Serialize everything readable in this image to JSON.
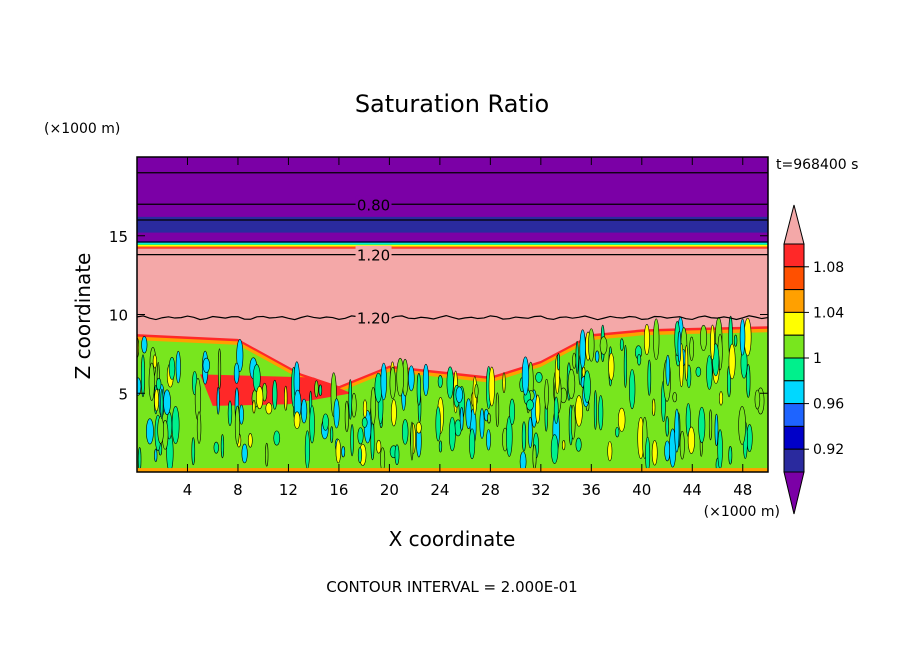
{
  "chart_data": {
    "type": "heatmap",
    "title": "Saturation Ratio",
    "time_label": "t=968400 s",
    "xlabel": "X coordinate",
    "ylabel": "Z coordinate",
    "x_unit": "(×1000 m)",
    "y_unit": "(×1000 m)",
    "xlim": [
      0,
      50
    ],
    "ylim": [
      0,
      20
    ],
    "x_ticks": [
      "4",
      "8",
      "12",
      "16",
      "20",
      "24",
      "28",
      "32",
      "36",
      "40",
      "44",
      "48"
    ],
    "y_ticks": [
      "5",
      "10",
      "15"
    ],
    "contour_interval": "CONTOUR INTERVAL = 2.000E-01",
    "contour_labels": [
      {
        "text": "0.80",
        "x": 17,
        "y": 17.0
      },
      {
        "text": "1.20",
        "x": 17,
        "y": 13.8
      },
      {
        "text": "1.20",
        "x": 17,
        "y": 9.8
      }
    ],
    "colorbar": {
      "labels": [
        "1.08",
        "1.04",
        "1",
        "0.96",
        "0.92"
      ],
      "levels": [
        0.92,
        0.94,
        0.96,
        0.98,
        1.0,
        1.02,
        1.04,
        1.06,
        1.08,
        1.1
      ],
      "colors": [
        "#7b00a6",
        "#2a2a9e",
        "#0000c8",
        "#1e64ff",
        "#00d8ff",
        "#00f08c",
        "#78e61e",
        "#ffff00",
        "#ffa000",
        "#ff5000",
        "#ff2828",
        "#f4a8a8"
      ]
    },
    "layers": [
      {
        "z_from": 17.0,
        "z_to": 20.0,
        "value": "< 0.92"
      },
      {
        "z_from": 14.6,
        "z_to": 17.0,
        "value": "< 0.92"
      },
      {
        "z_from": 14.3,
        "z_to": 14.6,
        "value": "0.92 – 1.10"
      },
      {
        "z_from": 8.0,
        "z_to": 14.3,
        "value": "> 1.10"
      },
      {
        "z_from": 0,
        "z_to": 8.0,
        "value": "0.98 – 1.02"
      }
    ],
    "boundary_layer_top": [
      {
        "x": 0,
        "z": 8.5
      },
      {
        "x": 8,
        "z": 8.2
      },
      {
        "x": 13,
        "z": 6.0
      },
      {
        "x": 16,
        "z": 5.2
      },
      {
        "x": 20,
        "z": 6.5
      },
      {
        "x": 28,
        "z": 5.8
      },
      {
        "x": 32,
        "z": 6.8
      },
      {
        "x": 36,
        "z": 8.5
      },
      {
        "x": 40,
        "z": 8.8
      },
      {
        "x": 44,
        "z": 8.9
      },
      {
        "x": 50,
        "z": 9.0
      }
    ]
  }
}
